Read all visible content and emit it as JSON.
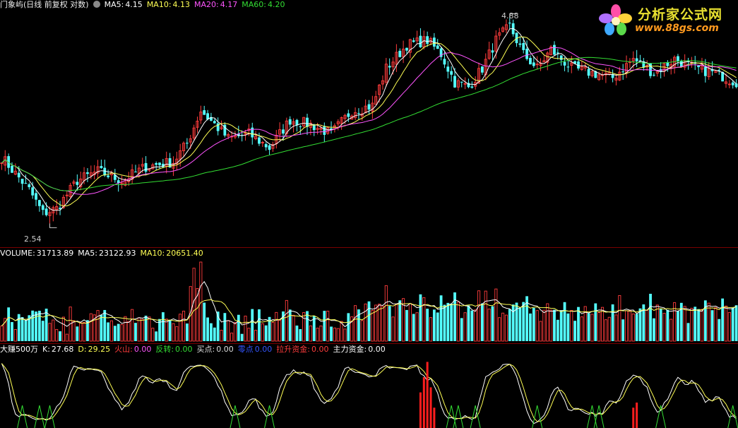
{
  "colors": {
    "up": "#ff3c3c",
    "down": "#54ffff",
    "ma5": "#ffffff",
    "ma10": "#ffff55",
    "ma20": "#ff55ff",
    "ma60": "#33dd33",
    "separator": "#7a0000"
  },
  "main_panel": {
    "title": "门象屿(日线 前复权 对数)",
    "settings_icon": "gear-icon",
    "ma5_label": "MA5:",
    "ma5_value": "4.15",
    "ma10_label": "MA10:",
    "ma10_value": "4.13",
    "ma20_label": "MA20:",
    "ma20_value": "4.17",
    "ma60_label": "MA60:",
    "ma60_value": "4.20",
    "high_label": "4.88",
    "low_label": "2.54"
  },
  "volume_panel": {
    "label": "VOLUME:",
    "value": "31713.89",
    "ma5_label": "MA5:",
    "ma5_value": "23122.93",
    "ma10_label": "MA10:",
    "ma10_value": "20651.40"
  },
  "indicator_panel": {
    "name": "大赚500万",
    "k_label": "K:",
    "k_value": "27.68",
    "d_label": "D:",
    "d_value": "29.25",
    "huoshan_label": "火山:",
    "huoshan_value": "0.00",
    "fanzhuan_label": "反转:",
    "fanzhuan_value": "0.00",
    "maidian_label": "买点:",
    "maidian_value": "0.00",
    "lingdian_label": "零点",
    "lingdian_value": "0.00",
    "lasheng_label": "拉升资金:",
    "lasheng_value": "0.00",
    "zhuli_label": "主力资金:",
    "zhuli_value": "0.00"
  },
  "logo": {
    "title": "分析家公式网",
    "url": "www.88gs.com"
  },
  "chart_data": {
    "type": "candlestick",
    "y_range": [
      2.54,
      4.88
    ],
    "anchors": [
      [
        0,
        3.35
      ],
      [
        8,
        3.0
      ],
      [
        12,
        2.75
      ],
      [
        16,
        2.8
      ],
      [
        22,
        3.1
      ],
      [
        28,
        3.2
      ],
      [
        35,
        3.1
      ],
      [
        42,
        3.25
      ],
      [
        50,
        3.3
      ],
      [
        54,
        3.5
      ],
      [
        58,
        3.85
      ],
      [
        62,
        3.7
      ],
      [
        66,
        3.55
      ],
      [
        72,
        3.6
      ],
      [
        78,
        3.45
      ],
      [
        84,
        3.75
      ],
      [
        90,
        3.7
      ],
      [
        96,
        3.6
      ],
      [
        102,
        3.85
      ],
      [
        108,
        3.9
      ],
      [
        112,
        4.3
      ],
      [
        118,
        4.55
      ],
      [
        124,
        4.6
      ],
      [
        128,
        4.45
      ],
      [
        132,
        4.15
      ],
      [
        136,
        4.1
      ],
      [
        140,
        4.3
      ],
      [
        144,
        4.6
      ],
      [
        148,
        4.75
      ],
      [
        152,
        4.45
      ],
      [
        156,
        4.3
      ],
      [
        160,
        4.5
      ],
      [
        166,
        4.3
      ],
      [
        172,
        4.25
      ],
      [
        178,
        4.2
      ],
      [
        184,
        4.4
      ],
      [
        190,
        4.25
      ],
      [
        196,
        4.4
      ],
      [
        202,
        4.3
      ],
      [
        208,
        4.25
      ],
      [
        214,
        4.15
      ]
    ]
  }
}
